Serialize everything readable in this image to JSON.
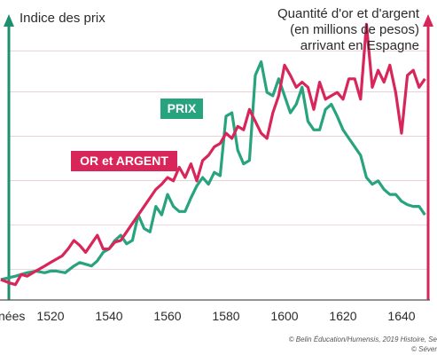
{
  "chart_data": {
    "type": "line",
    "title": "",
    "xlabel": "Années",
    "ylabel_left": "Indice des prix",
    "ylabel_right": [
      "Quantité d'or et d'argent",
      "(en millions de pesos)",
      "arrivant en Espagne"
    ],
    "x_ticks": [
      1520,
      1540,
      1560,
      1580,
      1600,
      1620,
      1640
    ],
    "xlim": [
      1503,
      1650
    ],
    "grid": "horizontal",
    "colors": {
      "prix": "#27a37d",
      "or_argent": "#d8255a",
      "axis_left": "#1e8f6e",
      "axis_right": "#d8255a"
    },
    "series": [
      {
        "name": "PRIX",
        "label_box": "left-center",
        "x": [
          1503,
          1508,
          1512,
          1515,
          1518,
          1520,
          1522,
          1525,
          1528,
          1530,
          1532,
          1534,
          1536,
          1538,
          1540,
          1542,
          1544,
          1546,
          1548,
          1550,
          1552,
          1554,
          1556,
          1558,
          1560,
          1562,
          1564,
          1566,
          1568,
          1570,
          1572,
          1574,
          1576,
          1578,
          1580,
          1582,
          1584,
          1586,
          1588,
          1590,
          1592,
          1594,
          1596,
          1598,
          1600,
          1602,
          1604,
          1606,
          1608,
          1610,
          1612,
          1614,
          1616,
          1618,
          1620,
          1622,
          1624,
          1626,
          1628,
          1630,
          1632,
          1634,
          1636,
          1638,
          1640,
          1642,
          1644,
          1646,
          1648
        ],
        "values": [
          12,
          14,
          16,
          17,
          16,
          17,
          17,
          16,
          20,
          22,
          21,
          20,
          23,
          28,
          30,
          35,
          38,
          33,
          35,
          50,
          42,
          40,
          55,
          50,
          62,
          55,
          52,
          52,
          60,
          67,
          72,
          68,
          75,
          73,
          108,
          110,
          88,
          80,
          82,
          132,
          140,
          122,
          120,
          130,
          120,
          110,
          115,
          125,
          105,
          100,
          100,
          112,
          115,
          108,
          100,
          95,
          90,
          85,
          72,
          68,
          70,
          65,
          62,
          62,
          58,
          56,
          55,
          55,
          50
        ]
      },
      {
        "name": "OR et ARGENT",
        "label_box": "left-center",
        "x": [
          1503,
          1506,
          1508,
          1510,
          1512,
          1514,
          1516,
          1518,
          1520,
          1522,
          1524,
          1526,
          1528,
          1530,
          1532,
          1534,
          1536,
          1538,
          1540,
          1542,
          1544,
          1546,
          1548,
          1550,
          1552,
          1554,
          1556,
          1558,
          1560,
          1562,
          1564,
          1566,
          1568,
          1570,
          1572,
          1574,
          1576,
          1578,
          1580,
          1582,
          1584,
          1586,
          1588,
          1590,
          1592,
          1594,
          1596,
          1598,
          1600,
          1602,
          1604,
          1606,
          1608,
          1610,
          1612,
          1614,
          1616,
          1618,
          1620,
          1622,
          1624,
          1626,
          1628,
          1630,
          1632,
          1634,
          1636,
          1638,
          1640,
          1642,
          1644,
          1646,
          1648
        ],
        "values": [
          12,
          10,
          9,
          15,
          14,
          16,
          18,
          20,
          22,
          24,
          26,
          30,
          35,
          32,
          28,
          33,
          38,
          30,
          30,
          34,
          35,
          40,
          45,
          50,
          55,
          60,
          65,
          68,
          72,
          70,
          78,
          72,
          80,
          70,
          82,
          85,
          90,
          92,
          98,
          95,
          102,
          100,
          112,
          105,
          98,
          95,
          110,
          120,
          138,
          132,
          125,
          128,
          125,
          112,
          128,
          118,
          120,
          122,
          118,
          130,
          130,
          118,
          162,
          125,
          135,
          128,
          138,
          122,
          98,
          132,
          135,
          125,
          130
        ]
      }
    ],
    "legend": [
      {
        "label": "PRIX",
        "color": "#27a37d"
      },
      {
        "label": "OR et ARGENT",
        "color": "#d8255a"
      }
    ],
    "partial_tick_label": "nées",
    "credit": [
      "© Belin Éducation/Humensis, 2019 Histoire, Se",
      "© Séver"
    ]
  }
}
